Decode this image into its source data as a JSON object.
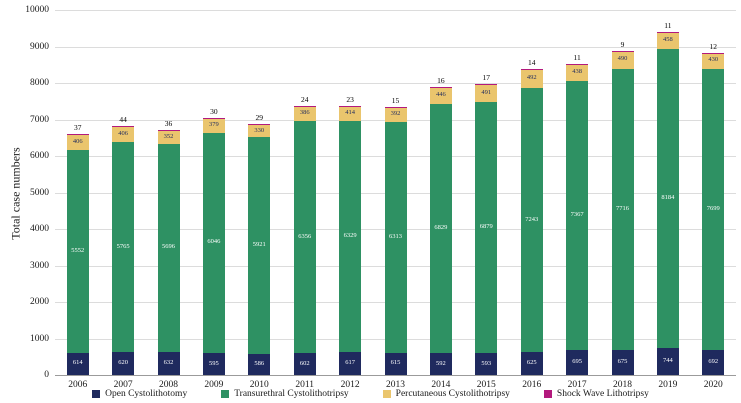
{
  "chart_data": {
    "type": "bar",
    "stacked": true,
    "title": "",
    "xlabel": "",
    "ylabel": "Total case numbers",
    "ylim": [
      0,
      10000
    ],
    "ytick_step": 1000,
    "yticks": [
      0,
      1000,
      2000,
      3000,
      4000,
      5000,
      6000,
      7000,
      8000,
      9000,
      10000
    ],
    "grid": "horizontal",
    "legend_position": "bottom",
    "categories": [
      "2006",
      "2007",
      "2008",
      "2009",
      "2010",
      "2011",
      "2012",
      "2013",
      "2014",
      "2015",
      "2016",
      "2017",
      "2018",
      "2019",
      "2020"
    ],
    "series": [
      {
        "name": "Open Cystolithotomy",
        "color": "#1f2a5e",
        "label_color": "#ffffff",
        "label_position": "inside",
        "values": [
          614,
          620,
          632,
          595,
          586,
          602,
          617,
          615,
          592,
          593,
          625,
          695,
          675,
          744,
          692
        ]
      },
      {
        "name": "Transurethral Cystolithotripsy",
        "color": "#2e9163",
        "label_color": "#ffffff",
        "label_position": "inside",
        "values": [
          5552,
          5765,
          5696,
          6046,
          5921,
          6356,
          6329,
          6313,
          6829,
          6879,
          7243,
          7367,
          7716,
          8184,
          7699
        ]
      },
      {
        "name": "Percutaneous Cystolithotripsy",
        "color": "#eac56d",
        "label_color": "#1f2a5e",
        "label_position": "inside",
        "values": [
          406,
          406,
          352,
          379,
          330,
          386,
          414,
          392,
          446,
          491,
          492,
          438,
          490,
          458,
          430
        ]
      },
      {
        "name": "Shock Wave Lithotripsy",
        "color": "#b3197d",
        "label_color": "#000000",
        "label_position": "above",
        "values": [
          37,
          44,
          36,
          30,
          29,
          24,
          23,
          15,
          16,
          17,
          14,
          11,
          9,
          11,
          12
        ]
      }
    ]
  }
}
